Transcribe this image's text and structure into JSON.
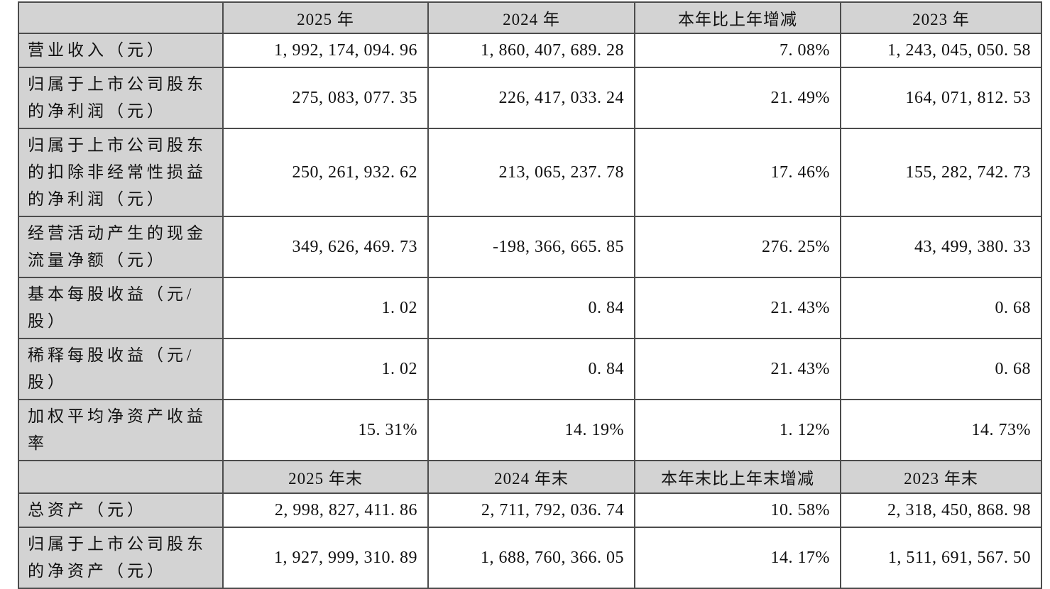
{
  "colors": {
    "header_and_label_bg": "#d3d3d3",
    "data_cell_bg": "#ffffff",
    "grid_border": "#4c4c4c",
    "text": "#111111"
  },
  "table": {
    "section_annual": {
      "headers": [
        "",
        "2025 年",
        "2024 年",
        "本年比上年增减",
        "2023 年"
      ],
      "rows": [
        {
          "label": "营业收入（元）",
          "y2025": "1, 992, 174, 094. 96",
          "y2024": "1, 860, 407, 689. 28",
          "change": "7. 08%",
          "y2023": "1, 243, 045, 050. 58"
        },
        {
          "label": "归属于上市公司股东的净利润（元）",
          "y2025": "275, 083, 077. 35",
          "y2024": "226, 417, 033. 24",
          "change": "21. 49%",
          "y2023": "164, 071, 812. 53"
        },
        {
          "label": "归属于上市公司股东的扣除非经常性损益的净利润（元）",
          "y2025": "250, 261, 932. 62",
          "y2024": "213, 065, 237. 78",
          "change": "17. 46%",
          "y2023": "155, 282, 742. 73"
        },
        {
          "label": "经营活动产生的现金流量净额（元）",
          "y2025": "349, 626, 469. 73",
          "y2024": "-198, 366, 665. 85",
          "change": "276. 25%",
          "y2023": "43, 499, 380. 33"
        },
        {
          "label": "基本每股收益（元/股）",
          "y2025": "1. 02",
          "y2024": "0. 84",
          "change": "21. 43%",
          "y2023": "0. 68"
        },
        {
          "label": "稀释每股收益（元/股）",
          "y2025": "1. 02",
          "y2024": "0. 84",
          "change": "21. 43%",
          "y2023": "0. 68"
        },
        {
          "label": "加权平均净资产收益率",
          "y2025": "15. 31%",
          "y2024": "14. 19%",
          "change": "1. 12%",
          "y2023": "14. 73%"
        }
      ]
    },
    "section_yearend": {
      "headers": [
        "",
        "2025 年末",
        "2024 年末",
        "本年末比上年末增减",
        "2023 年末"
      ],
      "rows": [
        {
          "label": "总资产（元）",
          "y2025": "2, 998, 827, 411. 86",
          "y2024": "2, 711, 792, 036. 74",
          "change": "10. 58%",
          "y2023": "2, 318, 450, 868. 98"
        },
        {
          "label": "归属于上市公司股东的净资产（元）",
          "y2025": "1, 927, 999, 310. 89",
          "y2024": "1, 688, 760, 366. 05",
          "change": "14. 17%",
          "y2023": "1, 511, 691, 567. 50"
        }
      ]
    }
  }
}
